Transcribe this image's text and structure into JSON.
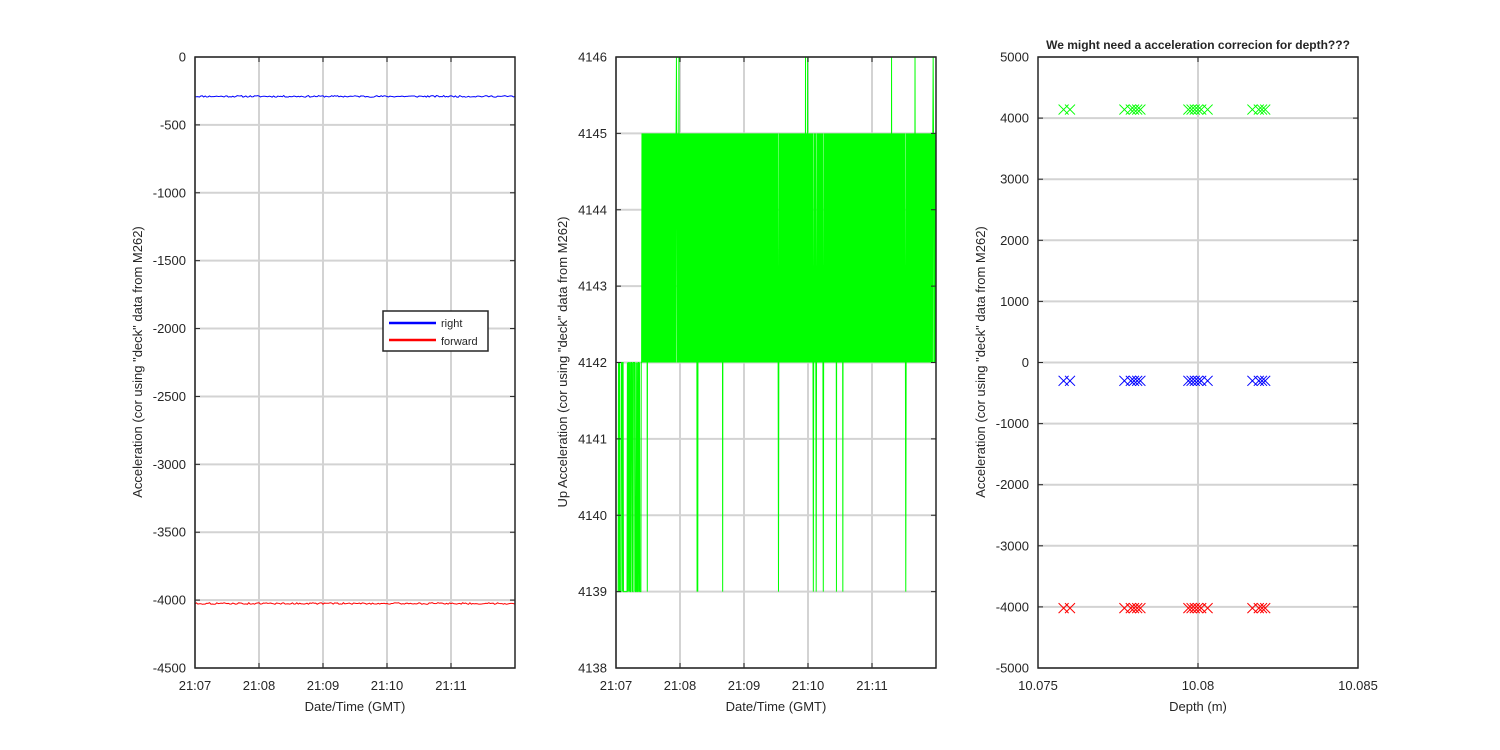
{
  "colors": {
    "right": "#0000ff",
    "forward": "#ff0000",
    "up": "#00ff00",
    "grid": "#d3d3d3",
    "axis": "#262626"
  },
  "chart_data": [
    {
      "type": "line",
      "title": "",
      "xlabel": "Date/Time (GMT)",
      "ylabel": "Acceleration (cor using \"deck\" data from M262)",
      "xlim": [
        "21:07",
        "21:12"
      ],
      "ylim": [
        -4500,
        0
      ],
      "xticks": [
        "21:07",
        "21:08",
        "21:09",
        "21:10",
        "21:11"
      ],
      "yticks": [
        0,
        -500,
        -1000,
        -1500,
        -2000,
        -2500,
        -3000,
        -3500,
        -4000,
        -4500
      ],
      "grid": true,
      "legend": {
        "position": "center-right",
        "entries": [
          "right",
          "forward"
        ]
      },
      "series": [
        {
          "name": "right",
          "color": "#0000ff",
          "x": [
            "21:07",
            "21:12"
          ],
          "values": [
            -290,
            -290
          ]
        },
        {
          "name": "forward",
          "color": "#ff0000",
          "x": [
            "21:07",
            "21:12"
          ],
          "values": [
            -4025,
            -4025
          ]
        }
      ]
    },
    {
      "type": "line",
      "title": "",
      "xlabel": "Date/Time (GMT)",
      "ylabel": "Up Acceleration (cor using \"deck\" data from M262)",
      "xlim": [
        "21:07",
        "21:12"
      ],
      "ylim": [
        4138,
        4146
      ],
      "xticks": [
        "21:07",
        "21:08",
        "21:09",
        "21:10",
        "21:11"
      ],
      "yticks": [
        4138,
        4139,
        4140,
        4141,
        4142,
        4143,
        4144,
        4145,
        4146
      ],
      "grid": true,
      "series": [
        {
          "color": "#00ff00",
          "band_main": [
            4142,
            4145
          ],
          "band_low": [
            4139,
            4142
          ],
          "band_high": [
            4145,
            4146
          ],
          "time_range": [
            "21:07",
            "21:12"
          ]
        }
      ]
    },
    {
      "type": "scatter",
      "title": "We might need a acceleration correcion for depth???",
      "xlabel": "Depth (m)",
      "ylabel": "Acceleration (cor using \"deck\" data from M262)",
      "xlim": [
        10.075,
        10.085
      ],
      "ylim": [
        -5000,
        5000
      ],
      "xticks": [
        "10.075",
        "10.08",
        "10.085"
      ],
      "yticks": [
        5000,
        4000,
        3000,
        2000,
        1000,
        0,
        -1000,
        -2000,
        -3000,
        -4000,
        -5000
      ],
      "grid": "y-major",
      "marker": "x",
      "x": [
        10.0758,
        10.076,
        10.0777,
        10.0779,
        10.078,
        10.0781,
        10.0782,
        10.0797,
        10.0798,
        10.0799,
        10.08,
        10.0801,
        10.0803,
        10.0817,
        10.0819,
        10.082,
        10.0821
      ],
      "series": [
        {
          "color": "#00ff00",
          "values": 4140
        },
        {
          "color": "#0000ff",
          "values": -300
        },
        {
          "color": "#ff0000",
          "values": -4020
        }
      ]
    }
  ]
}
